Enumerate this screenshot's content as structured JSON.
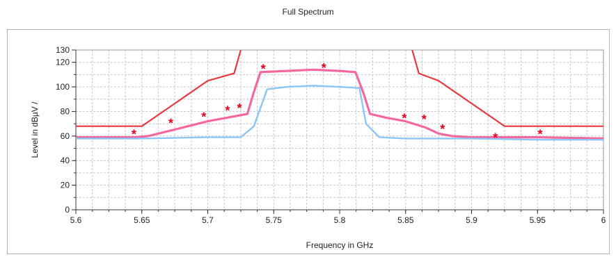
{
  "chart_data": {
    "type": "line",
    "title": "Full Spectrum",
    "xlabel": "Frequency in GHz",
    "ylabel": "Level in dBµV /",
    "xlim": [
      5.6,
      6.0
    ],
    "ylim": [
      0,
      130
    ],
    "x_ticks": [
      5.6,
      5.65,
      5.7,
      5.75,
      5.8,
      5.85,
      5.9,
      5.95,
      6.0
    ],
    "x_tick_labels": [
      "5.6",
      "5.65",
      "5.7",
      "5.75",
      "5.8",
      "5.85",
      "5.9",
      "5.95",
      "6"
    ],
    "y_ticks": [
      0,
      20,
      40,
      60,
      80,
      100,
      120,
      130
    ],
    "y_tick_labels": [
      "0",
      "20",
      "40",
      "60",
      "80",
      "100",
      "120",
      "130"
    ],
    "grid": true,
    "series": [
      {
        "color": "#e8373e",
        "style": "limit-line",
        "segments": [
          [
            [
              5.6,
              68
            ],
            [
              5.65,
              68
            ],
            [
              5.7,
              105
            ],
            [
              5.72,
              111
            ],
            [
              5.725,
              130
            ]
          ],
          [
            [
              5.855,
              130
            ],
            [
              5.86,
              111
            ],
            [
              5.875,
              105
            ],
            [
              5.925,
              68
            ],
            [
              6.0,
              68
            ]
          ]
        ]
      },
      {
        "color": "#f1609a",
        "style": "peak-trace",
        "x": [
          5.6,
          5.645,
          5.655,
          5.67,
          5.685,
          5.7,
          5.715,
          5.73,
          5.735,
          5.74,
          5.76,
          5.78,
          5.8,
          5.812,
          5.818,
          5.823,
          5.835,
          5.85,
          5.865,
          5.875,
          5.885,
          5.9,
          5.95,
          6.0
        ],
        "y": [
          59,
          59,
          60,
          64,
          68,
          72,
          75,
          78,
          96,
          112,
          113,
          114,
          113,
          112,
          95,
          78,
          75,
          72,
          67,
          62,
          60,
          59,
          59,
          58
        ]
      },
      {
        "color": "#86c3f5",
        "style": "average-trace",
        "x": [
          5.6,
          5.65,
          5.7,
          5.725,
          5.735,
          5.745,
          5.76,
          5.78,
          5.8,
          5.815,
          5.82,
          5.83,
          5.85,
          5.9,
          5.95,
          6.0
        ],
        "y": [
          58,
          58,
          59,
          59,
          68,
          98,
          100,
          101,
          100,
          99,
          70,
          59,
          58,
          58,
          57,
          57
        ]
      }
    ],
    "markers": {
      "symbol": "*",
      "color": "#e8001c",
      "x": [
        5.644,
        5.672,
        5.697,
        5.715,
        5.724,
        5.742,
        5.788,
        5.849,
        5.864,
        5.878,
        5.918,
        5.952
      ],
      "y": [
        62,
        71,
        76,
        81,
        83,
        115,
        116,
        75,
        74,
        66,
        59,
        62
      ]
    }
  }
}
